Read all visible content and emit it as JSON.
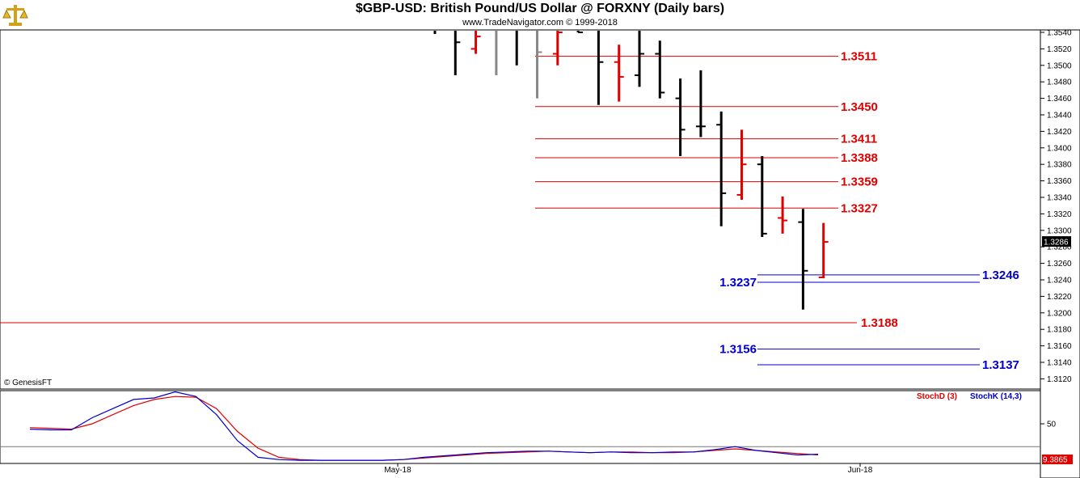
{
  "header": {
    "title": "$GBP-USD:  British Pound/US Dollar @ FORXNY  (Daily bars)",
    "copyright": "www.TradeNavigator.com © 1999-2018",
    "source_note": "© GenesisFT"
  },
  "colors": {
    "resistance": "#e00000",
    "support": "#0000cc",
    "bar_down": "#000000",
    "bar_up": "#e00000",
    "bar_neutral": "#888888",
    "stoch_d": "#e00000",
    "stoch_k": "#0000cc"
  },
  "chart_data": [
    {
      "type": "ohlc",
      "title": "$GBP-USD:  British Pound/US Dollar @ FORXNY  (Daily bars)",
      "ylim": [
        1.3115,
        1.3545
      ],
      "y_ticks": [
        "1.3540",
        "1.3520",
        "1.3500",
        "1.3480",
        "1.3460",
        "1.3440",
        "1.3420",
        "1.3400",
        "1.3380",
        "1.3360",
        "1.3340",
        "1.3320",
        "1.3300",
        "1.3280",
        "1.3260",
        "1.3240",
        "1.3220",
        "1.3200",
        "1.3180",
        "1.3160",
        "1.3140",
        "1.3120"
      ],
      "last_price": "1.3286",
      "x_labels": [
        "May-18",
        "Jun-18"
      ],
      "bars": [
        {
          "o": 1.355,
          "h": 1.356,
          "l": 1.3538,
          "c": 1.3545,
          "col": "down"
        },
        {
          "o": 1.356,
          "h": 1.356,
          "l": 1.3488,
          "c": 1.3528,
          "col": "down"
        },
        {
          "o": 1.352,
          "h": 1.3545,
          "l": 1.3514,
          "c": 1.3535,
          "col": "up"
        },
        {
          "o": 1.356,
          "h": 1.356,
          "l": 1.3488,
          "c": 1.356,
          "col": "neutral"
        },
        {
          "o": 1.356,
          "h": 1.356,
          "l": 1.35,
          "c": 1.356,
          "col": "down"
        },
        {
          "o": 1.356,
          "h": 1.356,
          "l": 1.346,
          "c": 1.3516,
          "col": "neutral"
        },
        {
          "o": 1.3514,
          "h": 1.3545,
          "l": 1.35,
          "c": 1.354,
          "col": "up"
        },
        {
          "o": 1.3545,
          "h": 1.356,
          "l": 1.354,
          "c": 1.354,
          "col": "down"
        },
        {
          "o": 1.356,
          "h": 1.356,
          "l": 1.3452,
          "c": 1.3504,
          "col": "down"
        },
        {
          "o": 1.3504,
          "h": 1.3525,
          "l": 1.3456,
          "c": 1.3486,
          "col": "up"
        },
        {
          "o": 1.3488,
          "h": 1.3545,
          "l": 1.3474,
          "c": 1.3514,
          "col": "down"
        },
        {
          "o": 1.3514,
          "h": 1.353,
          "l": 1.346,
          "c": 1.3467,
          "col": "down"
        },
        {
          "o": 1.346,
          "h": 1.3484,
          "l": 1.339,
          "c": 1.3422,
          "col": "down"
        },
        {
          "o": 1.3426,
          "h": 1.3494,
          "l": 1.3413,
          "c": 1.3426,
          "col": "down"
        },
        {
          "o": 1.3428,
          "h": 1.3444,
          "l": 1.3305,
          "c": 1.3345,
          "col": "down"
        },
        {
          "o": 1.3343,
          "h": 1.3422,
          "l": 1.3337,
          "c": 1.338,
          "col": "up"
        },
        {
          "o": 1.338,
          "h": 1.339,
          "l": 1.3292,
          "c": 1.3296,
          "col": "down"
        },
        {
          "o": 1.3315,
          "h": 1.3341,
          "l": 1.3296,
          "c": 1.3312,
          "col": "up"
        },
        {
          "o": 1.331,
          "h": 1.3326,
          "l": 1.3204,
          "c": 1.3251,
          "col": "down"
        },
        {
          "o": 1.3243,
          "h": 1.3309,
          "l": 1.3242,
          "c": 1.3286,
          "col": "up"
        }
      ],
      "levels": [
        {
          "label": "1.3511",
          "value": 1.3511,
          "kind": "resistance"
        },
        {
          "label": "1.3450",
          "value": 1.345,
          "kind": "resistance"
        },
        {
          "label": "1.3411",
          "value": 1.3411,
          "kind": "resistance"
        },
        {
          "label": "1.3388",
          "value": 1.3388,
          "kind": "resistance"
        },
        {
          "label": "1.3359",
          "value": 1.3359,
          "kind": "resistance"
        },
        {
          "label": "1.3327",
          "value": 1.3327,
          "kind": "resistance"
        },
        {
          "label": "1.3246",
          "value": 1.3246,
          "kind": "support"
        },
        {
          "label": "1.3237",
          "value": 1.3237,
          "kind": "support"
        },
        {
          "label": "1.3188",
          "value": 1.3188,
          "kind": "resistance"
        },
        {
          "label": "1.3156",
          "value": 1.3156,
          "kind": "support"
        },
        {
          "label": "1.3137",
          "value": 1.3137,
          "kind": "support"
        }
      ]
    },
    {
      "type": "line",
      "legend": [
        "StochD (3)",
        "StochK (14,3)"
      ],
      "ylim": [
        0,
        100
      ],
      "y_tick": "50",
      "last_value": "9.3865",
      "series": [
        {
          "name": "StochD (3)",
          "values": [
            45,
            44,
            43,
            50,
            62,
            74,
            82,
            86,
            85,
            70,
            40,
            18,
            6,
            3,
            2,
            2,
            2,
            2,
            3,
            5,
            7,
            9,
            11,
            12,
            13,
            14,
            13,
            12,
            13,
            13,
            12,
            12,
            13,
            15,
            17,
            15,
            13,
            11,
            9
          ]
        },
        {
          "name": "StochK (14,3)",
          "values": [
            43,
            42,
            42,
            58,
            70,
            82,
            84,
            92,
            86,
            62,
            28,
            6,
            3,
            2,
            2,
            2,
            2,
            2,
            3,
            6,
            8,
            10,
            12,
            13,
            14,
            14,
            13,
            12,
            13,
            12,
            12,
            13,
            13,
            16,
            20,
            15,
            12,
            9,
            10
          ]
        }
      ]
    }
  ]
}
